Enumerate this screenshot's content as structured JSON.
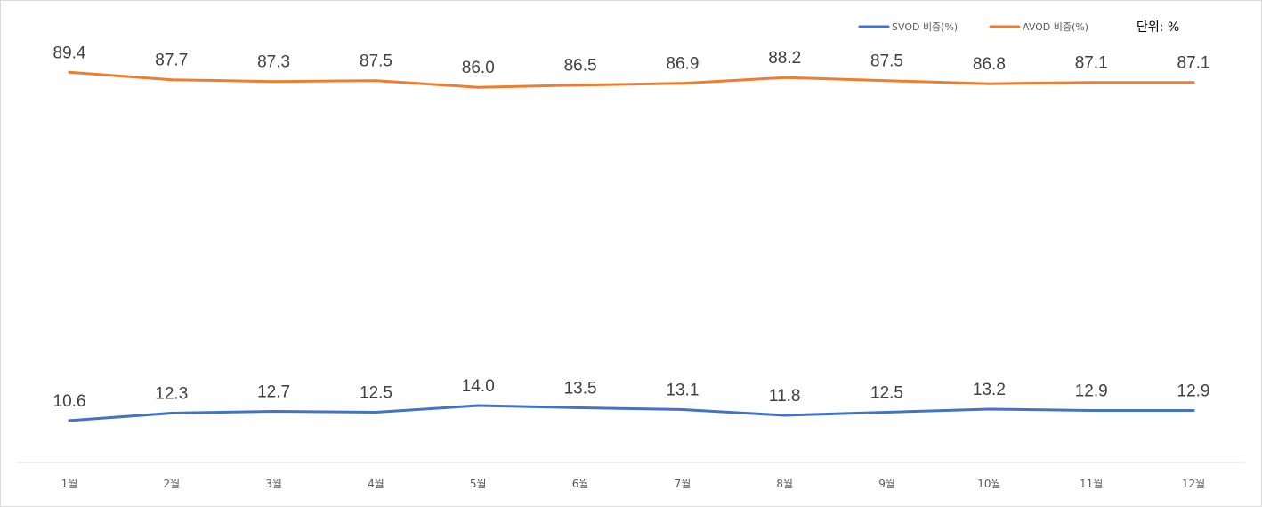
{
  "chart_data": {
    "type": "line",
    "categories": [
      "1월",
      "2월",
      "3월",
      "4월",
      "5월",
      "6월",
      "7월",
      "8월",
      "9월",
      "10월",
      "11월",
      "12월"
    ],
    "series": [
      {
        "name": "SVOD 비중(%)",
        "color": "#4472c4",
        "values": [
          10.6,
          12.3,
          12.7,
          12.5,
          14.0,
          13.5,
          13.1,
          11.8,
          12.5,
          13.2,
          12.9,
          12.9
        ],
        "labels": [
          "10.6",
          "12.3",
          "12.7",
          "12.5",
          "14.0",
          "13.5",
          "13.1",
          "11.8",
          "12.5",
          "13.2",
          "12.9",
          "12.9"
        ]
      },
      {
        "name": "AVOD 비중(%)",
        "color": "#ed7d31",
        "values": [
          89.4,
          87.7,
          87.3,
          87.5,
          86.0,
          86.5,
          86.9,
          88.2,
          87.5,
          86.8,
          87.1,
          87.1
        ],
        "labels": [
          "89.4",
          "87.7",
          "87.3",
          "87.5",
          "86.0",
          "86.5",
          "86.9",
          "88.2",
          "87.5",
          "86.8",
          "87.1",
          "87.1"
        ]
      }
    ],
    "unit_label": "단위: %",
    "legend_position": "top-right",
    "grid": false,
    "axis_color": "#d9d9d9"
  }
}
